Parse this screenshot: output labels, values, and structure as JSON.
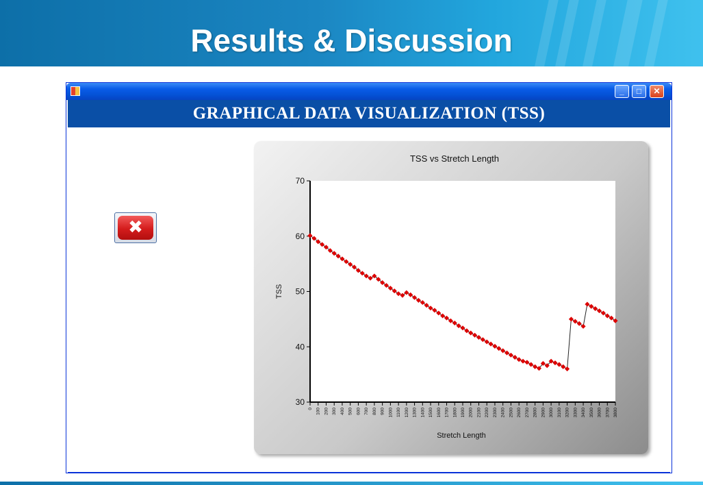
{
  "slide": {
    "title": "Results & Discussion"
  },
  "window": {
    "banner": "GRAPHICAL DATA VISUALIZATION (TSS)",
    "controls": {
      "minimize": "_",
      "maximize": "□",
      "close": "✕"
    },
    "close_button_icon": "close-x-icon",
    "close_button_glyph": "✖"
  },
  "colors": {
    "series": "#dd0000",
    "header": "#1b86c2",
    "banner": "#0a4fa6"
  },
  "chart_data": {
    "type": "line",
    "title": "TSS vs Stretch Length",
    "xlabel": "Stretch Length",
    "ylabel": "TSS",
    "xlim": [
      0,
      3800
    ],
    "ylim": [
      30,
      70
    ],
    "yticks": [
      30,
      40,
      50,
      60,
      70
    ],
    "xticks": [
      0,
      100,
      200,
      300,
      400,
      500,
      600,
      700,
      800,
      900,
      1000,
      1100,
      1200,
      1300,
      1400,
      1500,
      1600,
      1700,
      1800,
      1900,
      2000,
      2100,
      2200,
      2300,
      2400,
      2500,
      2600,
      2700,
      2800,
      2900,
      3000,
      3100,
      3200,
      3300,
      3400,
      3500,
      3600,
      3700,
      3800
    ],
    "grid": false,
    "legend": "none",
    "x": [
      0,
      50,
      100,
      150,
      200,
      250,
      300,
      350,
      400,
      450,
      500,
      550,
      600,
      650,
      700,
      750,
      800,
      850,
      900,
      950,
      1000,
      1050,
      1100,
      1150,
      1200,
      1250,
      1300,
      1350,
      1400,
      1450,
      1500,
      1550,
      1600,
      1650,
      1700,
      1750,
      1800,
      1850,
      1900,
      1950,
      2000,
      2050,
      2100,
      2150,
      2200,
      2250,
      2300,
      2350,
      2400,
      2450,
      2500,
      2550,
      2600,
      2650,
      2700,
      2750,
      2800,
      2850,
      2900,
      2950,
      3000,
      3050,
      3100,
      3150,
      3200,
      3250,
      3300,
      3350,
      3400,
      3450,
      3500,
      3550,
      3600,
      3650,
      3700,
      3750,
      3800
    ],
    "values": [
      60.1,
      59.6,
      59.0,
      58.5,
      58.0,
      57.4,
      56.9,
      56.4,
      55.9,
      55.4,
      54.9,
      54.4,
      53.8,
      53.3,
      52.8,
      52.4,
      52.8,
      52.2,
      51.6,
      51.1,
      50.6,
      50.1,
      49.6,
      49.3,
      49.8,
      49.4,
      48.9,
      48.4,
      48.0,
      47.5,
      47.0,
      46.6,
      46.1,
      45.6,
      45.2,
      44.7,
      44.3,
      43.8,
      43.4,
      42.9,
      42.5,
      42.1,
      41.7,
      41.3,
      40.9,
      40.5,
      40.1,
      39.7,
      39.3,
      38.9,
      38.5,
      38.1,
      37.7,
      37.4,
      37.2,
      36.8,
      36.4,
      36.1,
      37.0,
      36.6,
      37.4,
      37.1,
      36.8,
      36.4,
      36.0,
      45.0,
      44.6,
      44.2,
      43.7,
      47.7,
      47.3,
      46.9,
      46.5,
      46.1,
      45.6,
      45.2,
      44.7
    ]
  }
}
